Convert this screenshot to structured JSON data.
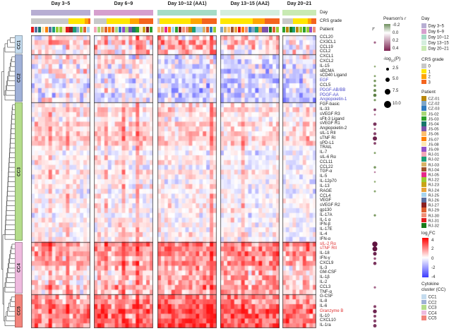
{
  "chart_data": {
    "type": "heatmap",
    "value_scale": {
      "name": "log2FC",
      "min": -4,
      "max": 4
    },
    "panels": [
      {
        "title": "Day 3~5",
        "day_color": "#b7aed3",
        "n_cols": 17,
        "crs_segments": [
          {
            "grade": "0",
            "frac": 0.63
          },
          {
            "grade": "1",
            "frac": 0.28
          },
          {
            "grade": "2",
            "frac": 0.05
          },
          {
            "grade": "3",
            "frac": 0.04
          }
        ]
      },
      {
        "title": "Day 6~9",
        "day_color": "#d69fce",
        "n_cols": 17,
        "crs_segments": [
          {
            "grade": "0",
            "frac": 0.21
          },
          {
            "grade": "1",
            "frac": 0.4
          },
          {
            "grade": "2",
            "frac": 0.15
          },
          {
            "grade": "3",
            "frac": 0.24
          }
        ]
      },
      {
        "title": "Day 10~12 (AA1)",
        "day_color": "#a5dcc6",
        "n_cols": 17,
        "crs_segments": [
          {
            "grade": "0",
            "frac": 0.04
          },
          {
            "grade": "1",
            "frac": 0.52
          },
          {
            "grade": "2",
            "frac": 0.19
          },
          {
            "grade": "3",
            "frac": 0.25
          }
        ]
      },
      {
        "title": "Day 13~15 (AA2)",
        "day_color": "#d4eedd",
        "n_cols": 17,
        "crs_segments": [
          {
            "grade": "1",
            "frac": 0.55
          },
          {
            "grade": "2",
            "frac": 0.2
          },
          {
            "grade": "3",
            "frac": 0.25
          }
        ]
      },
      {
        "title": "Day 20~21",
        "day_color": "#c9eab3",
        "n_cols": 10,
        "crs_segments": [
          {
            "grade": "0",
            "frac": 0.31
          },
          {
            "grade": "1",
            "frac": 0.44
          },
          {
            "grade": "2",
            "frac": 0.1
          },
          {
            "grade": "3",
            "frac": 0.15
          }
        ]
      }
    ],
    "rows": [
      {
        "label": "CCL20",
        "cluster": "CC1"
      },
      {
        "label": "CX3CL1",
        "cluster": "CC1",
        "r": 0.2,
        "p": 2.5
      },
      {
        "label": "CCL19",
        "cluster": "CC1"
      },
      {
        "label": "CCL2",
        "cluster": "CC1"
      },
      {
        "label": "CXCL1",
        "cluster": "CC2"
      },
      {
        "label": "CXCL2",
        "cluster": "CC2"
      },
      {
        "label": "IL-15",
        "cluster": "CC2",
        "r": -0.1,
        "p": 1.5
      },
      {
        "label": "sBCMA",
        "cluster": "CC2"
      },
      {
        "label": "sCD40 Ligand",
        "cluster": "CC2",
        "r": -0.15,
        "p": 2
      },
      {
        "label": "EGF",
        "cluster": "CC2",
        "emphasis": "blue",
        "r": -0.2,
        "p": 3
      },
      {
        "label": "CCL5",
        "cluster": "CC2",
        "r": -0.2,
        "p": 3
      },
      {
        "label": "PDGF-AB/BB",
        "cluster": "CC2",
        "emphasis": "blue",
        "r": -0.25,
        "p": 4
      },
      {
        "label": "PDGF-AA",
        "cluster": "CC2",
        "emphasis": "blue",
        "r": -0.3,
        "p": 5
      },
      {
        "label": "Angiopoietin-1",
        "cluster": "CC2",
        "emphasis": "blue",
        "r": -0.2,
        "p": 2.5
      },
      {
        "label": "FGF-basic",
        "cluster": "CC3"
      },
      {
        "label": "IL-33",
        "cluster": "CC3",
        "r": 0.3,
        "p": 3.5
      },
      {
        "label": "sVEGF R3",
        "cluster": "CC3",
        "r": 0.15,
        "p": 1.5
      },
      {
        "label": "sFlt-3 Ligand",
        "cluster": "CC3"
      },
      {
        "label": "sVEGF R1",
        "cluster": "CC3",
        "r": 0.35,
        "p": 5.5
      },
      {
        "label": "Angiopoietin-2",
        "cluster": "CC3",
        "r": 0.2,
        "p": 2
      },
      {
        "label": "sIL-1 RII",
        "cluster": "CC3",
        "r": 0.3,
        "p": 4.5
      },
      {
        "label": "sTNF RI",
        "cluster": "CC3",
        "r": 0.4,
        "p": 7.5
      },
      {
        "label": "sPD-L1",
        "cluster": "CC3",
        "r": 0.3,
        "p": 3.5
      },
      {
        "label": "TRAIL",
        "cluster": "CC3"
      },
      {
        "label": "IL-7",
        "cluster": "CC3",
        "r": -0.15,
        "p": 2
      },
      {
        "label": "sIL-6 Rα",
        "cluster": "CC3"
      },
      {
        "label": "CCL11",
        "cluster": "CC3"
      },
      {
        "label": "CCL22",
        "cluster": "CC3",
        "r": -0.2,
        "p": 3
      },
      {
        "label": "TGF-α",
        "cluster": "CC3",
        "r": 0.1,
        "p": 1.5
      },
      {
        "label": "IL-5",
        "cluster": "CC3"
      },
      {
        "label": "IL-12p70",
        "cluster": "CC3",
        "r": -0.1,
        "p": 1.5
      },
      {
        "label": "IL-13",
        "cluster": "CC3"
      },
      {
        "label": "RAGE",
        "cluster": "CC3",
        "r": -0.15,
        "p": 2
      },
      {
        "label": "CCL4",
        "cluster": "CC3"
      },
      {
        "label": "VEGF",
        "cluster": "CC3"
      },
      {
        "label": "sVEGF R2",
        "cluster": "CC3"
      },
      {
        "label": "gp130",
        "cluster": "CC3"
      },
      {
        "label": "IL-17A",
        "cluster": "CC3",
        "r": -0.2,
        "p": 2.5
      },
      {
        "label": "IL-1 α",
        "cluster": "CC3"
      },
      {
        "label": "IFN-β",
        "cluster": "CC3"
      },
      {
        "label": "IL-17E",
        "cluster": "CC3"
      },
      {
        "label": "IL-4",
        "cluster": "CC3"
      },
      {
        "label": "IFN-α",
        "cluster": "CC3"
      },
      {
        "label": "sIL-2 Rα",
        "cluster": "CC4",
        "emphasis": "red",
        "r": 0.45,
        "p": 10
      },
      {
        "label": "sTNF RII",
        "cluster": "CC4",
        "emphasis": "red",
        "r": 0.45,
        "p": 9
      },
      {
        "label": "IL-18",
        "cluster": "CC4",
        "r": 0.4,
        "p": 6
      },
      {
        "label": "IFN-γ",
        "cluster": "CC4",
        "r": 0.25,
        "p": 3
      },
      {
        "label": "CXCL9",
        "cluster": "CC4",
        "r": 0.35,
        "p": 5
      },
      {
        "label": "IL-3",
        "cluster": "CC4"
      },
      {
        "label": "GM-CSF",
        "cluster": "CC4"
      },
      {
        "label": "IL-1β",
        "cluster": "CC4"
      },
      {
        "label": "IL-2",
        "cluster": "CC4"
      },
      {
        "label": "CCL3",
        "cluster": "CC4",
        "r": 0.2,
        "p": 2.5
      },
      {
        "label": "TNF-α",
        "cluster": "CC4"
      },
      {
        "label": "G-CSF",
        "cluster": "CC5"
      },
      {
        "label": "IL-8",
        "cluster": "CC5"
      },
      {
        "label": "IL-6",
        "cluster": "CC5",
        "r": 0.3,
        "p": 4
      },
      {
        "label": "Granzyme B",
        "cluster": "CC5",
        "emphasis": "red",
        "r": 0.4,
        "p": 6.5
      },
      {
        "label": "IL-10",
        "cluster": "CC5",
        "r": 0.3,
        "p": 4
      },
      {
        "label": "CXCL10",
        "cluster": "CC5",
        "r": 0.3,
        "p": 4.5
      },
      {
        "label": "IL-1ra",
        "cluster": "CC5",
        "r": 0.35,
        "p": 5.5
      }
    ],
    "clusters": [
      {
        "id": "CC1",
        "color": "#c4dbee",
        "from": 0,
        "to": 3
      },
      {
        "id": "CC2",
        "color": "#9fb0d7",
        "from": 4,
        "to": 13
      },
      {
        "id": "CC3",
        "color": "#b4dc8b",
        "from": 14,
        "to": 42
      },
      {
        "id": "CC4",
        "color": "#eebade",
        "from": 43,
        "to": 53
      },
      {
        "id": "CC5",
        "color": "#f2837b",
        "from": 54,
        "to": 60
      }
    ],
    "cell_model": {
      "seed": 421,
      "cluster_panel_mean": {
        "CC1": [
          0.4,
          0.5,
          0.9,
          0.4,
          0.2
        ],
        "CC2": [
          0.1,
          -0.1,
          -0.45,
          -0.6,
          -0.4
        ],
        "CC3": [
          0.15,
          0.05,
          0.1,
          0.05,
          0.0
        ],
        "CC4": [
          0.5,
          0.7,
          1.3,
          1.3,
          0.9
        ],
        "CC5": [
          1.3,
          1.6,
          2.3,
          2.1,
          1.4
        ]
      },
      "cluster_spread": {
        "CC1": 1.6,
        "CC2": 1.4,
        "CC3": 0.9,
        "CC4": 1.3,
        "CC5": 1.4
      }
    }
  },
  "annotation_labels": {
    "day": "Day",
    "crs": "CRS grade",
    "patient": "Patient",
    "r": "r"
  },
  "legends": {
    "pearson": {
      "title_prefix": "Pearson's ",
      "title_italic": "r",
      "ticks": [
        "-0.2",
        "0.0",
        "0.2",
        "0.4"
      ],
      "gradient": [
        "#6f8f5e",
        "#ffffff",
        "#7c2250"
      ]
    },
    "logp": {
      "title_prefix": "-log",
      "title_sub": "10",
      "title_suffix": "(P)",
      "entries": [
        {
          "label": "2.5",
          "radius": 2
        },
        {
          "label": "5.0",
          "radius": 3
        },
        {
          "label": "7.5",
          "radius": 4
        },
        {
          "label": "10.0",
          "radius": 5
        }
      ]
    },
    "day": {
      "title": "Day",
      "entries": [
        {
          "label": "Day 3~5",
          "color": "#b7aed3"
        },
        {
          "label": "Day 6~9",
          "color": "#d69fce"
        },
        {
          "label": "Day 10~12",
          "color": "#a5dcc6"
        },
        {
          "label": "Day 13~15",
          "color": "#d4eedd"
        },
        {
          "label": "Day 20~21",
          "color": "#c9eab3"
        }
      ]
    },
    "crs": {
      "title": "CRS grade",
      "entries": [
        {
          "label": "0",
          "color": "#c8c8c8"
        },
        {
          "label": "1",
          "color": "#ffe600"
        },
        {
          "label": "2",
          "color": "#ffa500"
        },
        {
          "label": "3",
          "color": "#f4641e"
        }
      ]
    },
    "patient": {
      "title": "Patient",
      "entries": [
        {
          "label": "CZ-01",
          "color": "#b8860b"
        },
        {
          "label": "CZ-02",
          "color": "#7ea6c8"
        },
        {
          "label": "CZ-03",
          "color": "#2f7abf"
        },
        {
          "label": "JS-02",
          "color": "#a8d878"
        },
        {
          "label": "JS-03",
          "color": "#2ca02c"
        },
        {
          "label": "JS-04",
          "color": "#17766b"
        },
        {
          "label": "JS-05",
          "color": "#7b52ab"
        },
        {
          "label": "JS-06",
          "color": "#fdbf6f"
        },
        {
          "label": "JS-07",
          "color": "#ff7f00"
        },
        {
          "label": "JS-08",
          "color": "#fde8b0"
        },
        {
          "label": "JS-09",
          "color": "#9350c8"
        },
        {
          "label": "RJ-01",
          "color": "#f4a7b9"
        },
        {
          "label": "RJ-02",
          "color": "#1b9e77"
        },
        {
          "label": "RJ-03",
          "color": "#d8b365"
        },
        {
          "label": "RJ-04",
          "color": "#a0522d"
        },
        {
          "label": "RJ-05",
          "color": "#e7298a"
        },
        {
          "label": "RJ-22",
          "color": "#9acd32"
        },
        {
          "label": "RJ-23",
          "color": "#c8a415"
        },
        {
          "label": "RJ-24",
          "color": "#e8a33c"
        },
        {
          "label": "RJ-25",
          "color": "#a6d4ef"
        },
        {
          "label": "RJ-26",
          "color": "#5b6e9e"
        },
        {
          "label": "RJ-27",
          "color": "#8b2020"
        },
        {
          "label": "RJ-29",
          "color": "#e06030"
        },
        {
          "label": "RJ-30",
          "color": "#f09078"
        },
        {
          "label": "RJ-31",
          "color": "#e31a1c"
        },
        {
          "label": "RJ-32",
          "color": "#1a7a1a"
        }
      ]
    },
    "log2fc": {
      "title_prefix": "log",
      "title_sub": "2",
      "title_suffix": "FC",
      "ticks": [
        "4",
        "2",
        "0",
        "-2",
        "-4"
      ],
      "gradient": [
        "#ff0000",
        "#ffffff",
        "#3b3bff"
      ]
    },
    "cc": {
      "title_line1": "Cytokine",
      "title_line2": "cluster (CC)",
      "entries": [
        {
          "label": "CC1",
          "color": "#c4dbee"
        },
        {
          "label": "CC2",
          "color": "#9fb0d7"
        },
        {
          "label": "CC3",
          "color": "#b4dc8b"
        },
        {
          "label": "CC4",
          "color": "#eebade"
        },
        {
          "label": "CC5",
          "color": "#f2837b"
        }
      ]
    }
  }
}
